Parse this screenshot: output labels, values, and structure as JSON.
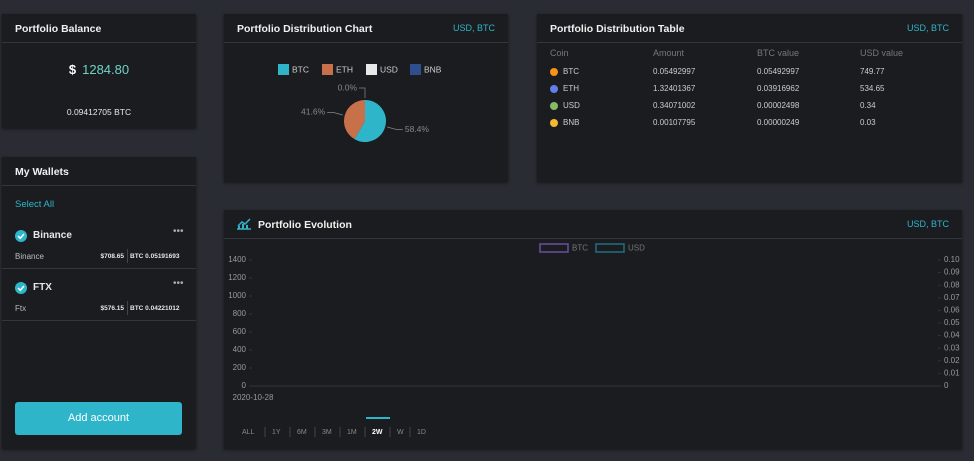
{
  "balance": {
    "title": "Portfolio Balance",
    "currency": "$",
    "amount": "1284.80",
    "btc": "0.09412705 BTC"
  },
  "wallets": {
    "title": "My Wallets",
    "select_all": "Select All",
    "items": [
      {
        "name": "Binance",
        "sub": "Binance",
        "usd": "$708.65",
        "btc": "BTC 0.05191693"
      },
      {
        "name": "FTX",
        "sub": "Ftx",
        "usd": "$576.15",
        "btc": "BTC 0.04221012"
      }
    ],
    "add_button": "Add account"
  },
  "distribution_chart": {
    "type": "pie",
    "title": "Portfolio Distribution Chart",
    "units": "USD, BTC",
    "categories": [
      "BTC",
      "ETH",
      "USD",
      "BNB"
    ],
    "colors": [
      "#2fb5c9",
      "#c8704a",
      "#e8e8e8",
      "#2f4e8e"
    ],
    "values": [
      58.4,
      41.6,
      0.0,
      0.0
    ],
    "value_labels": [
      "58.4%",
      "41.6%",
      "0.0%",
      null
    ]
  },
  "distribution_table": {
    "title": "Portfolio Distribution Table",
    "units": "USD, BTC",
    "header": [
      "Coin",
      "Amount",
      "BTC value",
      "USD value"
    ],
    "icon_colors": [
      "#f7931a",
      "#627eea",
      "#85bb65",
      "#f3ba2f"
    ],
    "rows": [
      [
        "BTC",
        "0.05492997",
        "0.05492997",
        "749.77"
      ],
      [
        "ETH",
        "1.32401367",
        "0.03916962",
        "534.65"
      ],
      [
        "USD",
        "0.34071002",
        "0.00002498",
        "0.34"
      ],
      [
        "BNB",
        "0.00107795",
        "0.00000249",
        "0.03"
      ]
    ]
  },
  "evolution_chart": {
    "type": "line",
    "title": "Portfolio Evolution",
    "units": "USD, BTC",
    "x": [
      "2020-10-28"
    ],
    "series": [
      {
        "name": "BTC",
        "color": "#6a4fa0",
        "axis": "y2",
        "values": [
          null
        ]
      },
      {
        "name": "USD",
        "color": "#1f6f80",
        "values": [
          null
        ]
      }
    ],
    "ylim": [
      0,
      1400
    ],
    "yticks": [
      0,
      200,
      400,
      600,
      800,
      1000,
      1200,
      1400
    ],
    "y2lim": [
      0,
      0.1
    ],
    "y2ticks": [
      {
        "value": 0,
        "label": "0"
      },
      0.01,
      0.02,
      0.03,
      0.04,
      0.05,
      0.06,
      0.07,
      0.08,
      0.09,
      {
        "value": 0.1,
        "label": "0.10"
      }
    ],
    "ranges": [
      "ALL",
      "1Y",
      "6M",
      "3M",
      "1M",
      "2W",
      "W",
      "1D"
    ],
    "selected_range": "2W"
  }
}
